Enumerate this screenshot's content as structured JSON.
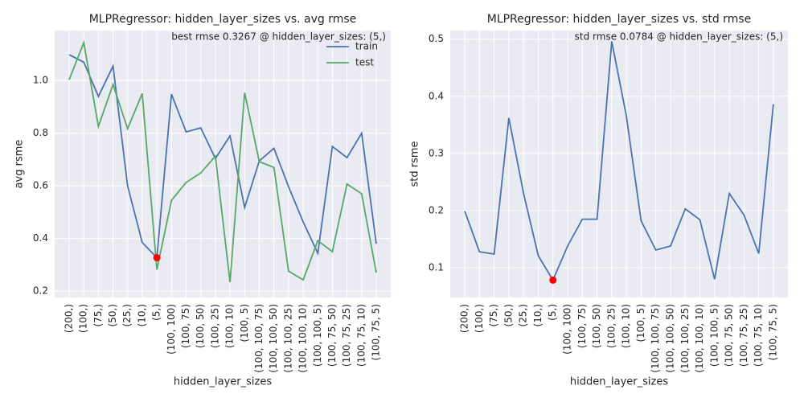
{
  "chart_data": [
    {
      "type": "line",
      "title": "MLPRegressor: hidden_layer_sizes vs. avg rmse",
      "annotation": "best rmse 0.3267 @ hidden_layer_sizes: (5,)",
      "xlabel": "hidden_layer_sizes",
      "ylabel": "avg rsme",
      "categories": [
        "(200,)",
        "(100,)",
        "(75,)",
        "(50,)",
        "(25,)",
        "(10,)",
        "(5,)",
        "(100, 100)",
        "(100, 75)",
        "(100, 50)",
        "(100, 25)",
        "(100, 10)",
        "(100, 5)",
        "(100, 100, 75)",
        "(100, 100, 50)",
        "(100, 100, 25)",
        "(100, 100, 10)",
        "(100, 100, 5)",
        "(100, 75, 50)",
        "(100, 75, 25)",
        "(100, 75, 10)",
        "(100, 75, 5)"
      ],
      "series": [
        {
          "name": "train",
          "color": "#4c72b0",
          "values": [
            1.098,
            1.07,
            0.94,
            1.055,
            0.6,
            0.385,
            0.327,
            0.948,
            0.805,
            0.82,
            0.704,
            0.79,
            0.518,
            0.695,
            0.743,
            0.597,
            0.463,
            0.344,
            0.75,
            0.707,
            0.8,
            0.38
          ]
        },
        {
          "name": "test",
          "color": "#55a868",
          "values": [
            1.003,
            1.144,
            0.826,
            0.985,
            0.817,
            0.951,
            0.282,
            0.545,
            0.613,
            0.649,
            0.713,
            0.234,
            0.954,
            0.692,
            0.67,
            0.276,
            0.243,
            0.392,
            0.35,
            0.607,
            0.57,
            0.27
          ]
        }
      ],
      "highlight_color": "red",
      "ylim": [
        0.176,
        1.19
      ],
      "yticks": [
        0.2,
        0.4,
        0.6,
        0.8,
        {
          "value": 1.0,
          "label": "1.0"
        }
      ],
      "grid": true,
      "legend": "upper right"
    },
    {
      "type": "line",
      "title": "MLPRegressor: hidden_layer_sizes vs. std rmse",
      "annotation": "std rmse 0.0784 @ hidden_layer_sizes: (5,)",
      "xlabel": "hidden_layer_sizes",
      "ylabel": "std rsme",
      "categories": [
        "(200,)",
        "(100,)",
        "(75,)",
        "(50,)",
        "(25,)",
        "(10,)",
        "(5,)",
        "(100, 100)",
        "(100, 75)",
        "(100, 50)",
        "(100, 25)",
        "(100, 10)",
        "(100, 5)",
        "(100, 100, 75)",
        "(100, 100, 50)",
        "(100, 100, 25)",
        "(100, 100, 10)",
        "(100, 100, 5)",
        "(100, 75, 50)",
        "(100, 75, 25)",
        "(100, 75, 10)",
        "(100, 75, 5)"
      ],
      "series": [
        {
          "color": "#4c72b0",
          "values": [
            0.199,
            0.128,
            0.124,
            0.362,
            0.23,
            0.121,
            0.0784,
            0.138,
            0.185,
            0.185,
            0.496,
            0.365,
            0.182,
            0.131,
            0.138,
            0.203,
            0.184,
            0.08,
            0.23,
            0.192,
            0.125,
            0.386
          ]
        }
      ],
      "highlight_color": "red",
      "ylim": [
        0.048,
        0.515
      ],
      "yticks": [
        0.1,
        0.2,
        0.3,
        0.4,
        0.5
      ],
      "grid": true
    }
  ]
}
